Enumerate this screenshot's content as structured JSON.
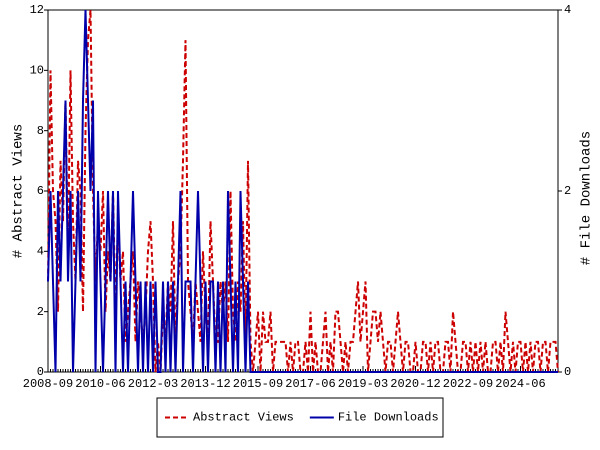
{
  "chart_data": {
    "type": "line",
    "y_label": "# Abstract Views",
    "y2_label": "# File Downloads",
    "categories": [
      "2008-09",
      null,
      null,
      null,
      null,
      null,
      null,
      null,
      null,
      null,
      null,
      null,
      null,
      null,
      null,
      null,
      null,
      null,
      null,
      null,
      null,
      "2010-06",
      null,
      null,
      null,
      null,
      null,
      null,
      null,
      null,
      null,
      null,
      null,
      null,
      null,
      null,
      null,
      null,
      null,
      null,
      null,
      null,
      "2012-03",
      null,
      null,
      null,
      null,
      null,
      null,
      null,
      null,
      null,
      null,
      null,
      null,
      null,
      null,
      null,
      null,
      null,
      null,
      null,
      null,
      "2013-12",
      null,
      null,
      null,
      null,
      null,
      null,
      null,
      null,
      null,
      null,
      null,
      null,
      null,
      null,
      null,
      null,
      null,
      null,
      null,
      null,
      "2015-09",
      null,
      null,
      null,
      null,
      null,
      null,
      null,
      null,
      null,
      null,
      null,
      null,
      null,
      null,
      null,
      null,
      null,
      null,
      null,
      null,
      "2017-06",
      null,
      null,
      null,
      null,
      null,
      null,
      null,
      null,
      null,
      null,
      null,
      null,
      null,
      null,
      null,
      null,
      null,
      null,
      null,
      null,
      "2019-03",
      null,
      null,
      null,
      null,
      null,
      null,
      null,
      null,
      null,
      null,
      null,
      null,
      null,
      null,
      null,
      null,
      null,
      null,
      null,
      null,
      "2020-12",
      null,
      null,
      null,
      null,
      null,
      null,
      null,
      null,
      null,
      null,
      null,
      null,
      null,
      null,
      null,
      null,
      null,
      null,
      null,
      null,
      "2022-09",
      null,
      null,
      null,
      null,
      null,
      null,
      null,
      null,
      null,
      null,
      null,
      null,
      null,
      null,
      null,
      null,
      null,
      null,
      null,
      null,
      "2024-06",
      null,
      null,
      null,
      null,
      null,
      null,
      null,
      null,
      null,
      null,
      null,
      null,
      null,
      null,
      null
    ],
    "series": [
      {
        "name": "Abstract Views",
        "color": "#cc0000",
        "dashed": true,
        "values": [
          3,
          10,
          6,
          5,
          2,
          7,
          5,
          9,
          4,
          10,
          5,
          3,
          7,
          6,
          2,
          8,
          11,
          12,
          6,
          3,
          5,
          4,
          6,
          2,
          4,
          3,
          6,
          2,
          5,
          3,
          4,
          1,
          2,
          3,
          4,
          1,
          3,
          2,
          1,
          2,
          4,
          5,
          3,
          0,
          1,
          0,
          2,
          1,
          3,
          2,
          5,
          1,
          3,
          4,
          7,
          11,
          3,
          2,
          1,
          3,
          2,
          1,
          4,
          2,
          1,
          5,
          3,
          1,
          1,
          3,
          2,
          3,
          1,
          6,
          2,
          1,
          3,
          2,
          5,
          1,
          7,
          1,
          0,
          1,
          2,
          0,
          2,
          1,
          1,
          2,
          0,
          1,
          1,
          1,
          1,
          1,
          0,
          1,
          0,
          1,
          1,
          0,
          0,
          1,
          0,
          2,
          0,
          1,
          0,
          0,
          1,
          2,
          0,
          1,
          0,
          2,
          2,
          1,
          0,
          1,
          0,
          1,
          1,
          2,
          3,
          1,
          2,
          3,
          0,
          1,
          2,
          2,
          1,
          2,
          1,
          0,
          1,
          1,
          0,
          1,
          2,
          1,
          0,
          1,
          1,
          0,
          0,
          1,
          0,
          0,
          1,
          1,
          0,
          1,
          0,
          1,
          1,
          0,
          0,
          1,
          1,
          0,
          2,
          1,
          0,
          0,
          1,
          1,
          0,
          1,
          0,
          1,
          0,
          1,
          0,
          1,
          0,
          0,
          1,
          1,
          0,
          1,
          0,
          2,
          1,
          0,
          1,
          0,
          1,
          1,
          0,
          1,
          0,
          1,
          0,
          1,
          1,
          0,
          1,
          1,
          0,
          1,
          1,
          1,
          0
        ]
      },
      {
        "name": "File Downloads",
        "color": "#0000aa",
        "axis": "y2",
        "values": [
          1,
          2,
          1,
          0,
          2,
          1,
          2,
          3,
          1,
          2,
          0,
          1,
          2,
          1,
          3,
          4,
          3,
          2,
          3,
          0,
          2,
          1,
          0,
          1,
          2,
          1,
          2,
          0,
          2,
          1,
          0,
          1,
          0,
          1,
          2,
          1,
          0,
          1,
          0,
          1,
          0,
          1,
          0,
          1,
          0,
          0,
          1,
          0,
          1,
          0,
          1,
          0,
          1,
          2,
          0,
          1,
          1,
          1,
          0,
          1,
          2,
          1,
          0,
          1,
          0,
          1,
          1,
          0,
          1,
          0,
          1,
          0,
          2,
          1,
          0,
          1,
          0,
          2,
          1,
          0,
          1,
          0,
          0,
          0,
          0,
          0,
          0,
          0,
          0,
          0,
          0,
          0,
          0,
          0,
          0,
          0,
          0,
          0,
          0,
          0,
          0,
          0,
          0,
          0,
          0,
          0,
          0,
          0,
          0,
          0,
          0,
          0,
          0,
          0,
          0,
          0,
          0,
          0,
          0,
          0,
          0,
          0,
          0,
          0,
          0,
          0,
          0,
          0,
          0,
          0,
          0,
          0,
          0,
          0,
          0,
          0,
          0,
          0,
          0,
          0,
          0,
          0,
          0,
          0,
          0,
          0,
          0,
          0,
          0,
          0,
          0,
          0,
          0,
          0,
          0,
          0,
          0,
          0,
          0,
          0,
          0,
          0,
          0,
          0,
          0,
          0,
          0,
          0,
          0,
          0,
          0,
          0,
          0,
          0,
          0,
          0,
          0,
          0,
          0,
          0,
          0,
          0,
          0,
          0,
          0,
          0,
          0,
          0,
          0,
          0,
          0,
          0,
          0,
          0,
          0,
          0,
          0,
          0,
          0,
          0,
          0,
          0,
          0,
          0,
          0
        ]
      }
    ],
    "ylim": [
      0,
      12
    ],
    "yticks": [
      0,
      2,
      4,
      6,
      8,
      10,
      12
    ],
    "y2lim": [
      0,
      4
    ],
    "y2ticks": [
      0,
      2,
      4
    ],
    "legend": "bottom"
  }
}
